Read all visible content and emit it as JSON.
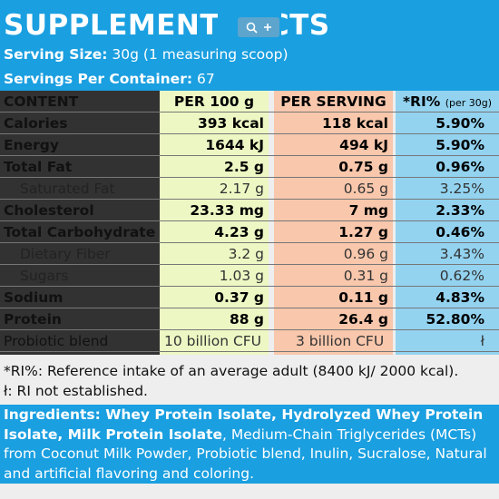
{
  "header": {
    "title": "SUPPLEMENT FACTS",
    "serving_size_label": "Serving Size:",
    "serving_size_value": "30g (1 measuring scoop)",
    "servings_label": "Servings Per Container:",
    "servings_value": "67"
  },
  "colors": {
    "header_bg": "#1a9fe0",
    "per100_bg": "#edf7c4",
    "serving_bg": "#f8c7ac",
    "ri_bg": "#93d3f0",
    "label_bg": "#323232"
  },
  "table": {
    "headers": {
      "content": "CONTENT",
      "per100": "PER 100 g",
      "serving": "PER SERVING",
      "ri": "*RI%",
      "ri_sub": "(per 30g)"
    },
    "rows": [
      {
        "label": "Calories",
        "per100": "393 kcal",
        "serving": "118 kcal",
        "ri": "5.90%",
        "style": "bold"
      },
      {
        "label": "Energy",
        "per100": "1644 kJ",
        "serving": "494 kJ",
        "ri": "5.90%",
        "style": "bold"
      },
      {
        "label": "Total Fat",
        "per100": "2.5 g",
        "serving": "0.75 g",
        "ri": "0.96%",
        "style": "bold"
      },
      {
        "label": "Saturated Fat",
        "per100": "2.17 g",
        "serving": "0.65 g",
        "ri": "3.25%",
        "style": "light"
      },
      {
        "label": "Cholesterol",
        "per100": "23.33 mg",
        "serving": "7 mg",
        "ri": "2.33%",
        "style": "bold"
      },
      {
        "label": "Total Carbohydrate",
        "per100": "4.23 g",
        "serving": "1.27 g",
        "ri": "0.46%",
        "style": "bold"
      },
      {
        "label": "Dietary Fiber",
        "per100": "3.2 g",
        "serving": "0.96 g",
        "ri": "3.43%",
        "style": "light"
      },
      {
        "label": "Sugars",
        "per100": "1.03 g",
        "serving": "0.31 g",
        "ri": "0.62%",
        "style": "light"
      },
      {
        "label": "Sodium",
        "per100": "0.37 g",
        "serving": "0.11 g",
        "ri": "4.83%",
        "style": "bold"
      },
      {
        "label": "Protein",
        "per100": "88 g",
        "serving": "26.4 g",
        "ri": "52.80%",
        "style": "bold"
      },
      {
        "label": "Probiotic blend",
        "per100": "10 billion CFU",
        "serving": "3 billion CFU",
        "ri": "ł",
        "style": "light"
      }
    ]
  },
  "notes": {
    "ri_note": "*RI%: Reference intake of an average adult (8400 kJ/ 2000 kcal).",
    "ne_note": "ł: RI not established."
  },
  "ingredients": {
    "bold_part": "Ingredients: Whey Protein Isolate, Hydrolyzed Whey Protein Isolate, Milk Protein Isolate",
    "rest": ", Medium-Chain Triglycerides (MCTs) from Coconut Milk Powder, Probiotic blend, Inulin, Sucralose, Natural and artificial flavoring and coloring."
  },
  "icons": [
    "zoom-in-icon",
    "plus-icon"
  ]
}
